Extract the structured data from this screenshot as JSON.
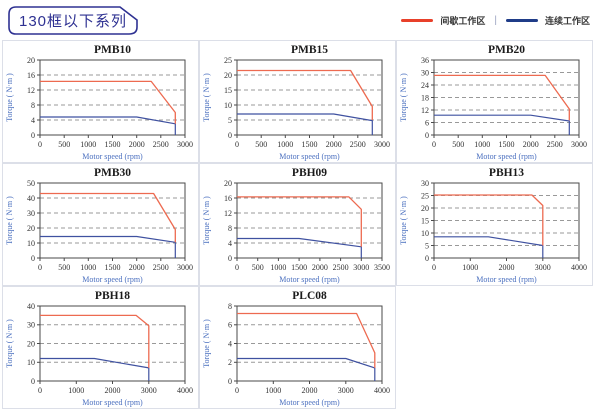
{
  "header": {
    "title": "130框以下系列"
  },
  "legend": {
    "items": [
      {
        "name": "intermittent-zone",
        "label": "间歇工作区",
        "color": "#e8402a"
      },
      {
        "name": "continuous-zone",
        "label": "连续工作区",
        "color": "#1f3c88"
      }
    ],
    "separator": "|"
  },
  "colors": {
    "accent_navy": "#2e3192",
    "red_line": "#ed6a50",
    "blue_line": "#3f51a0"
  },
  "chart_data": [
    {
      "type": "line",
      "title": "PMB10",
      "xlabel": "Motor speed (rpm)",
      "ylabel": "Torque ( N·m )",
      "xlim": [
        0,
        3000
      ],
      "xtick_step": 500,
      "ylim": [
        0,
        20
      ],
      "ytick_step": 4,
      "grid": "horizontal-dashed",
      "legend_position": "none",
      "series": [
        {
          "name": "间歇工作区",
          "color": "#ed6a50",
          "points": [
            [
              0,
              14.3
            ],
            [
              2300,
              14.3
            ],
            [
              2800,
              6
            ],
            [
              2800,
              3
            ]
          ]
        },
        {
          "name": "连续工作区",
          "color": "#3f51a0",
          "points": [
            [
              0,
              4.8
            ],
            [
              2000,
              4.8
            ],
            [
              2800,
              3
            ],
            [
              2800,
              0
            ]
          ]
        }
      ]
    },
    {
      "type": "line",
      "title": "PMB15",
      "xlabel": "Motor speed (rpm)",
      "ylabel": "Torque ( N·m )",
      "xlim": [
        0,
        3000
      ],
      "xtick_step": 500,
      "ylim": [
        0,
        25
      ],
      "ytick_step": 5,
      "grid": "horizontal-dashed",
      "legend_position": "none",
      "series": [
        {
          "name": "间歇工作区",
          "color": "#ed6a50",
          "points": [
            [
              0,
              21.5
            ],
            [
              2350,
              21.5
            ],
            [
              2800,
              9.5
            ],
            [
              2800,
              5
            ]
          ]
        },
        {
          "name": "连续工作区",
          "color": "#3f51a0",
          "points": [
            [
              0,
              7
            ],
            [
              2000,
              7
            ],
            [
              2800,
              4.8
            ],
            [
              2800,
              0
            ]
          ]
        }
      ]
    },
    {
      "type": "line",
      "title": "PMB20",
      "xlabel": "Motor speed (rpm)",
      "ylabel": "Torque ( N·m )",
      "xlim": [
        0,
        3000
      ],
      "xtick_step": 500,
      "ylim": [
        0,
        36
      ],
      "ytick_step": 6,
      "grid": "horizontal-dashed",
      "legend_position": "none",
      "series": [
        {
          "name": "间歇工作区",
          "color": "#ed6a50",
          "points": [
            [
              0,
              28.6
            ],
            [
              2300,
              28.6
            ],
            [
              2800,
              12.5
            ],
            [
              2800,
              7
            ]
          ]
        },
        {
          "name": "连续工作区",
          "color": "#3f51a0",
          "points": [
            [
              0,
              9.5
            ],
            [
              2000,
              9.5
            ],
            [
              2800,
              6.7
            ],
            [
              2800,
              0
            ]
          ]
        }
      ]
    },
    {
      "type": "line",
      "title": "PMB30",
      "xlabel": "Motor speed (rpm)",
      "ylabel": "Torque ( N·m )",
      "xlim": [
        0,
        3000
      ],
      "xtick_step": 500,
      "ylim": [
        0,
        50
      ],
      "ytick_step": 10,
      "grid": "horizontal-dashed",
      "legend_position": "none",
      "series": [
        {
          "name": "间歇工作区",
          "color": "#ed6a50",
          "points": [
            [
              0,
              43
            ],
            [
              2350,
              43
            ],
            [
              2800,
              19
            ],
            [
              2800,
              10.5
            ]
          ]
        },
        {
          "name": "连续工作区",
          "color": "#3f51a0",
          "points": [
            [
              0,
              14.3
            ],
            [
              2000,
              14.3
            ],
            [
              2800,
              10.5
            ],
            [
              2800,
              0
            ]
          ]
        }
      ]
    },
    {
      "type": "line",
      "title": "PBH09",
      "xlabel": "Motor speed (rpm)",
      "ylabel": "Torque ( N·m )",
      "xlim": [
        0,
        3500
      ],
      "xtick_step": 500,
      "ylim": [
        0,
        20
      ],
      "ytick_step": 4,
      "grid": "horizontal-dashed",
      "legend_position": "none",
      "series": [
        {
          "name": "间歇工作区",
          "color": "#ed6a50",
          "points": [
            [
              0,
              16.3
            ],
            [
              2700,
              16.3
            ],
            [
              3000,
              13
            ],
            [
              3000,
              3
            ]
          ]
        },
        {
          "name": "连续工作区",
          "color": "#3f51a0",
          "points": [
            [
              0,
              5.2
            ],
            [
              1500,
              5.2
            ],
            [
              3000,
              3
            ],
            [
              3000,
              0
            ]
          ]
        }
      ]
    },
    {
      "type": "line",
      "title": "PBH13",
      "xlabel": "Motor speed (rpm)",
      "ylabel": "Torque ( N·m )",
      "xlim": [
        0,
        4000
      ],
      "xtick_step": 1000,
      "ylim": [
        0,
        30
      ],
      "ytick_step": 5,
      "grid": "horizontal-dashed",
      "legend_position": "none",
      "series": [
        {
          "name": "间歇工作区",
          "color": "#ed6a50",
          "points": [
            [
              0,
              25.2
            ],
            [
              2700,
              25.2
            ],
            [
              3000,
              21
            ],
            [
              3000,
              5
            ]
          ]
        },
        {
          "name": "连续工作区",
          "color": "#3f51a0",
          "points": [
            [
              0,
              8.5
            ],
            [
              1500,
              8.5
            ],
            [
              3000,
              5
            ],
            [
              3000,
              0
            ]
          ]
        }
      ]
    },
    {
      "type": "line",
      "title": "PBH18",
      "xlabel": "Motor speed (rpm)",
      "ylabel": "Torque ( N·m )",
      "xlim": [
        0,
        4000
      ],
      "xtick_step": 1000,
      "ylim": [
        0,
        40
      ],
      "ytick_step": 10,
      "grid": "horizontal-dashed",
      "legend_position": "none",
      "series": [
        {
          "name": "间歇工作区",
          "color": "#ed6a50",
          "points": [
            [
              0,
              35
            ],
            [
              2650,
              35
            ],
            [
              3000,
              29.5
            ],
            [
              3000,
              7
            ]
          ]
        },
        {
          "name": "连续工作区",
          "color": "#3f51a0",
          "points": [
            [
              0,
              12
            ],
            [
              1500,
              12
            ],
            [
              3000,
              7
            ],
            [
              3000,
              0
            ]
          ]
        }
      ]
    },
    {
      "type": "line",
      "title": "PLC08",
      "xlabel": "Motor speed (rpm)",
      "ylabel": "Torque ( N·m )",
      "xlim": [
        0,
        4000
      ],
      "xtick_step": 1000,
      "ylim": [
        0,
        8
      ],
      "ytick_step": 2,
      "grid": "horizontal-dashed",
      "legend_position": "none",
      "series": [
        {
          "name": "间歇工作区",
          "color": "#ed6a50",
          "points": [
            [
              0,
              7.2
            ],
            [
              3300,
              7.2
            ],
            [
              3800,
              3
            ],
            [
              3800,
              1.4
            ]
          ]
        },
        {
          "name": "连续工作区",
          "color": "#3f51a0",
          "points": [
            [
              0,
              2.4
            ],
            [
              3000,
              2.4
            ],
            [
              3800,
              1.4
            ],
            [
              3800,
              0
            ]
          ]
        }
      ]
    }
  ]
}
